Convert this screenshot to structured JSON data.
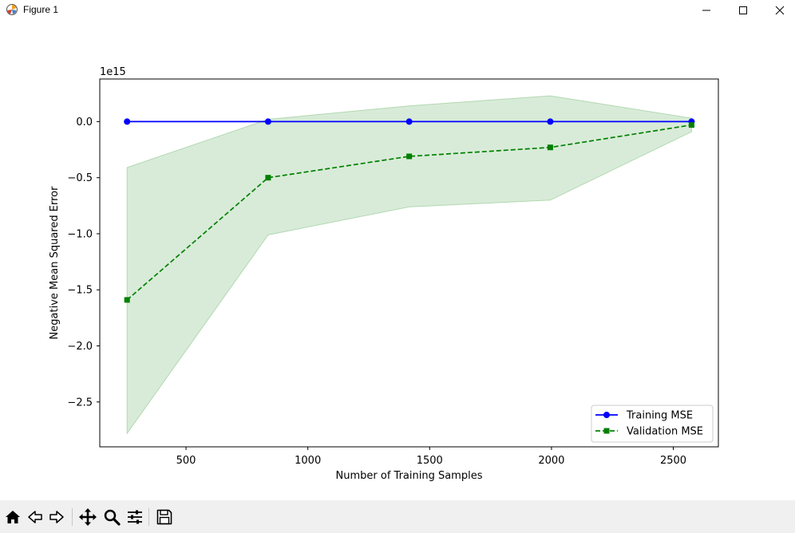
{
  "window": {
    "title": "Figure 1",
    "icons": [
      "matplotlib-icon",
      "minimize-icon",
      "maximize-icon",
      "close-icon"
    ]
  },
  "toolbar": {
    "buttons": [
      "home-icon",
      "back-icon",
      "forward-icon",
      "pan-icon",
      "zoom-icon",
      "configure-subplots-icon",
      "save-icon"
    ]
  },
  "chart_data": {
    "type": "line",
    "title": "",
    "xlabel": "Number of Training Samples",
    "ylabel": "Negative Mean Squared Error",
    "y_scale_label": "1e15",
    "xlim": [
      146,
      2685
    ],
    "ylim": [
      -2.9,
      0.38
    ],
    "x_ticks": [
      500,
      1000,
      1500,
      2000,
      2500
    ],
    "x_tick_labels": [
      "500",
      "1000",
      "1500",
      "2000",
      "2500"
    ],
    "y_ticks": [
      0.0,
      -0.5,
      -1.0,
      -1.5,
      -2.0,
      -2.5
    ],
    "y_tick_labels": [
      "0.0",
      "−0.5",
      "−1.0",
      "−1.5",
      "−2.0",
      "−2.5"
    ],
    "grid": false,
    "legend_position": "lower-right",
    "x": [
      258,
      837,
      1416,
      1995,
      2575
    ],
    "series": [
      {
        "name": "Training MSE",
        "values": [
          0.0,
          0.0,
          0.0,
          0.0,
          0.0
        ],
        "color": "#0000ff",
        "linestyle": "solid",
        "marker": "circle"
      },
      {
        "name": "Validation MSE",
        "values": [
          -1.59,
          -0.5,
          -0.31,
          -0.23,
          -0.03
        ],
        "color": "#008000",
        "linestyle": "dashed",
        "marker": "square",
        "band_upper": [
          -0.41,
          0.02,
          0.14,
          0.23,
          0.03
        ],
        "band_lower": [
          -2.78,
          -1.01,
          -0.76,
          -0.7,
          -0.09
        ],
        "band_color": "#d8ebd8",
        "band_edge_color": "#b2d8b2"
      }
    ]
  }
}
